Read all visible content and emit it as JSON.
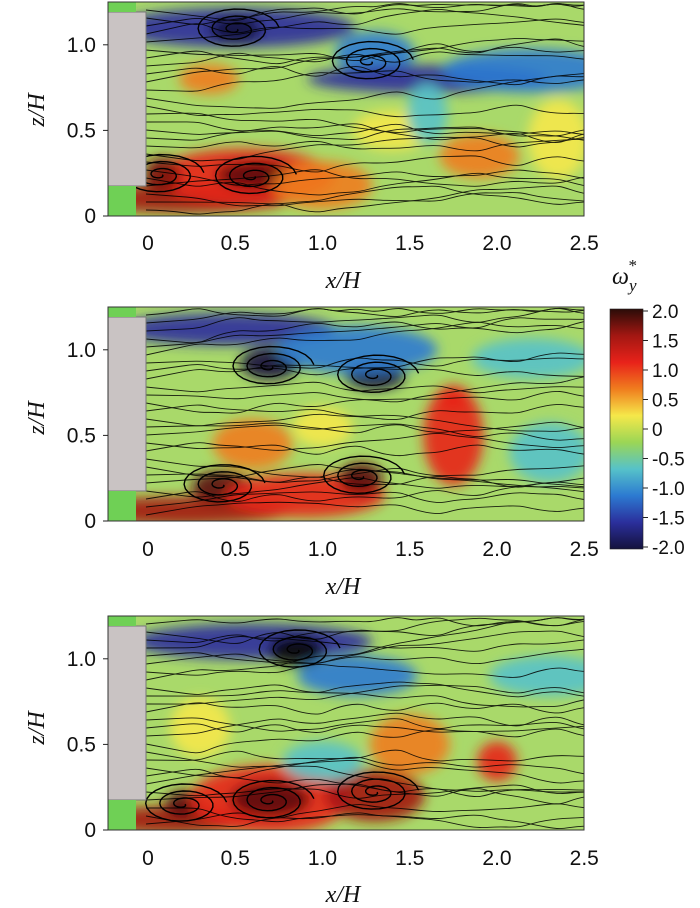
{
  "colorbar": {
    "title": "ω",
    "title_sub": "y",
    "title_sup": "*",
    "ticks": [
      "2.0",
      "1.5",
      "1.0",
      "0.5",
      "0",
      "-0.5",
      "-1.0",
      "-1.5",
      "-2.0"
    ],
    "range": [
      -2.0,
      2.0
    ],
    "stops": [
      "#2a0c08",
      "#a31712",
      "#e8221a",
      "#f07d1e",
      "#f5e84a",
      "#9bd655",
      "#56c2c9",
      "#2c7ad1",
      "#2b2f9c",
      "#14123d"
    ]
  },
  "colors": {
    "body": "#c9c3c3",
    "ground_strip": "#6fd055",
    "field_background": "#a9d96a",
    "streamline": "#000000"
  },
  "chart_data": [
    {
      "type": "heatmap",
      "panel": 1,
      "xlabel": "x/H",
      "ylabel": "z/H",
      "x_ticks": [
        "0",
        "0.5",
        "1.0",
        "1.5",
        "2.0",
        "2.5"
      ],
      "y_ticks": [
        "0",
        "0.5",
        "1.0"
      ],
      "xlim": [
        -0.2,
        2.5
      ],
      "ylim": [
        0,
        1.25
      ],
      "vortex_cores": [
        {
          "x": 0.07,
          "z": 0.24,
          "sign": "positive"
        },
        {
          "x": 0.6,
          "z": 0.23,
          "sign": "positive"
        },
        {
          "x": 0.5,
          "z": 1.09,
          "sign": "negative"
        },
        {
          "x": 1.27,
          "z": 0.9,
          "sign": "negative"
        }
      ]
    },
    {
      "type": "heatmap",
      "panel": 2,
      "xlabel": "x/H",
      "ylabel": "z/H",
      "x_ticks": [
        "0",
        "0.5",
        "1.0",
        "1.5",
        "2.0",
        "2.5"
      ],
      "y_ticks": [
        "0",
        "0.5",
        "1.0"
      ],
      "xlim": [
        -0.2,
        2.5
      ],
      "ylim": [
        0,
        1.25
      ],
      "vortex_cores": [
        {
          "x": 0.42,
          "z": 0.21,
          "sign": "positive"
        },
        {
          "x": 1.22,
          "z": 0.26,
          "sign": "positive"
        },
        {
          "x": 0.7,
          "z": 0.9,
          "sign": "negative"
        },
        {
          "x": 1.3,
          "z": 0.85,
          "sign": "negative"
        }
      ]
    },
    {
      "type": "heatmap",
      "panel": 3,
      "xlabel": "x/H",
      "ylabel": "z/H",
      "x_ticks": [
        "0",
        "0.5",
        "1.0",
        "1.5",
        "2.0",
        "2.5"
      ],
      "y_ticks": [
        "0",
        "0.5",
        "1.0"
      ],
      "xlim": [
        -0.2,
        2.5
      ],
      "ylim": [
        0,
        1.25
      ],
      "vortex_cores": [
        {
          "x": 0.2,
          "z": 0.15,
          "sign": "positive"
        },
        {
          "x": 0.7,
          "z": 0.17,
          "sign": "positive"
        },
        {
          "x": 1.3,
          "z": 0.22,
          "sign": "positive"
        },
        {
          "x": 0.85,
          "z": 1.05,
          "sign": "negative"
        }
      ]
    }
  ]
}
